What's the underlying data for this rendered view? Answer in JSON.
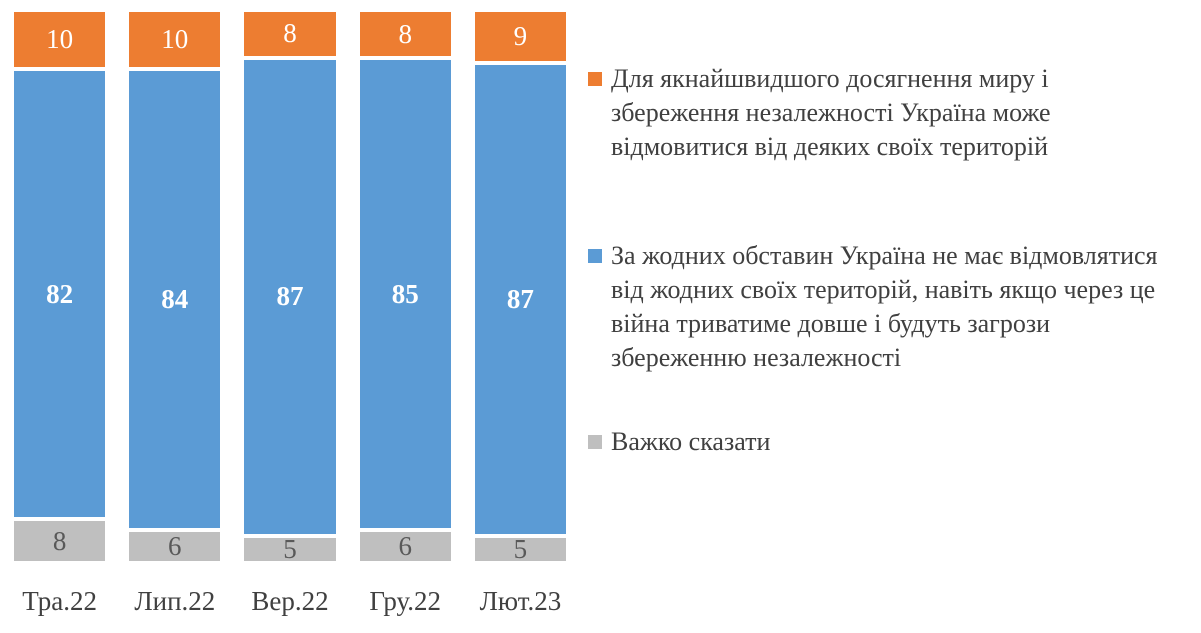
{
  "chart_data": {
    "type": "bar",
    "stacked": true,
    "percent": true,
    "orientation": "vertical",
    "grid": false,
    "legend_position": "right",
    "ylim": [
      0,
      100
    ],
    "categories": [
      "Тра.22",
      "Лип.22",
      "Вер.22",
      "Гру.22",
      "Лют.23"
    ],
    "series": [
      {
        "name": "Для якнайшвидшого досягнення миру і збереження незалежності Україна може відмовитися від деяких своїх територій",
        "color": "#ED7D31",
        "label_color": "#FFFFFF",
        "values": [
          10,
          10,
          8,
          8,
          9
        ]
      },
      {
        "name": "За жодних обставин Україна не має відмовлятися від жодних своїх територій, навіть якщо через це війна триватиме довше і будуть загрози збереженню незалежності",
        "color": "#5B9BD5",
        "label_color": "#FFFFFF",
        "values": [
          82,
          84,
          87,
          85,
          87
        ]
      },
      {
        "name": "Важко сказати",
        "color": "#BFBFBF",
        "label_color": "#595959",
        "values": [
          8,
          6,
          5,
          6,
          5
        ]
      }
    ]
  }
}
